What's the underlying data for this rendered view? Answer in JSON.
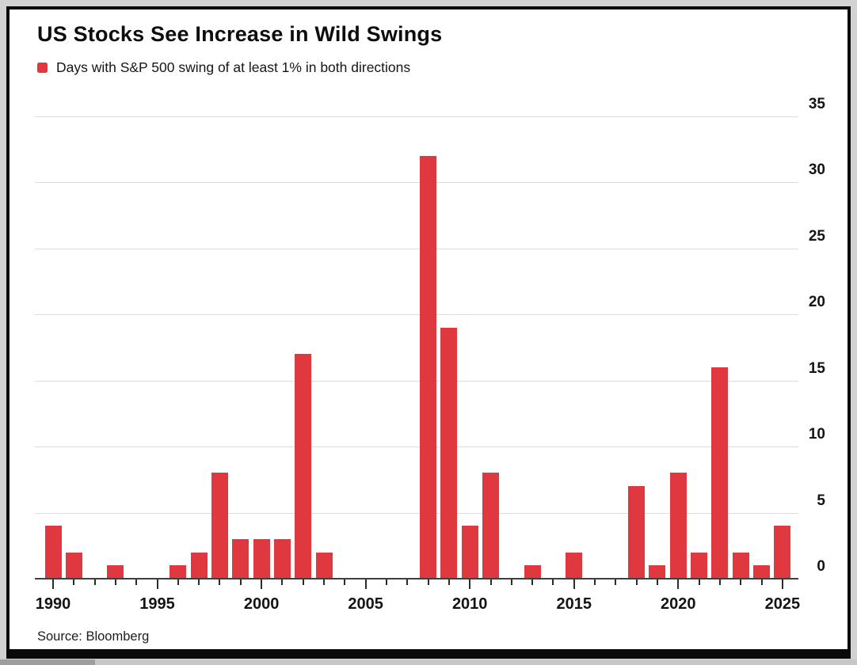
{
  "title": "US Stocks See Increase in Wild Swings",
  "legend": {
    "label": "Days with S&P 500 swing of at least 1% in both directions",
    "marker_color": "#e0383f"
  },
  "source": "Source: Bloomberg",
  "chart_data": {
    "type": "bar",
    "title": "US Stocks See Increase in Wild Swings",
    "series_name": "Days with S&P 500 swing of at least 1% in both directions",
    "categories": [
      1990,
      1991,
      1992,
      1993,
      1994,
      1995,
      1996,
      1997,
      1998,
      1999,
      2000,
      2001,
      2002,
      2003,
      2004,
      2005,
      2006,
      2007,
      2008,
      2009,
      2010,
      2011,
      2012,
      2013,
      2014,
      2015,
      2016,
      2017,
      2018,
      2019,
      2020,
      2021,
      2022,
      2023,
      2024,
      2025
    ],
    "values": [
      4,
      2,
      0,
      1,
      0,
      0,
      1,
      2,
      8,
      3,
      3,
      3,
      17,
      2,
      0,
      0,
      0,
      0,
      32,
      19,
      4,
      8,
      0,
      1,
      0,
      2,
      0,
      0,
      7,
      1,
      8,
      2,
      16,
      2,
      1,
      4
    ],
    "bar_color": "#e0383f",
    "xlabel": "",
    "ylabel": "",
    "x_tick_labels": [
      "1990",
      "1995",
      "2000",
      "2005",
      "2010",
      "2015",
      "2020",
      "2025"
    ],
    "y_ticks": [
      0,
      5,
      10,
      15,
      20,
      25,
      30,
      35
    ],
    "ylim": [
      0,
      35
    ],
    "grid": true,
    "y_axis_side": "right",
    "legend_position": "top-left"
  }
}
